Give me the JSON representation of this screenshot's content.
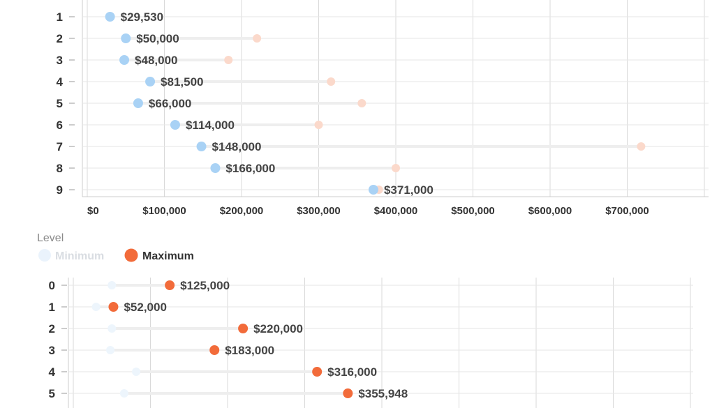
{
  "colors": {
    "minimum": "#a9d2f5",
    "maximum": "#f26b3a",
    "grid": "#d9d9d9",
    "connector": "#eeeeee"
  },
  "legend": {
    "title": "Level",
    "items": [
      "Minimum",
      "Maximum"
    ],
    "active": "Maximum"
  },
  "chart_data": [
    {
      "type": "scatter",
      "subtype": "dumbbell",
      "highlighted_series": "Minimum",
      "categories": [
        "1",
        "2",
        "3",
        "4",
        "5",
        "6",
        "7",
        "8",
        "9"
      ],
      "series": [
        {
          "name": "Minimum",
          "values": [
            29530,
            50000,
            48000,
            81500,
            66000,
            114000,
            148000,
            166000,
            371000
          ]
        },
        {
          "name": "Maximum",
          "values": [
            null,
            220000,
            183000,
            316000,
            355948,
            300000,
            718000,
            400000,
            378000
          ]
        }
      ],
      "data_labels": [
        "$29,530",
        "$50,000",
        "$48,000",
        "$81,500",
        "$66,000",
        "$114,000",
        "$148,000",
        "$166,000",
        "$371,000"
      ],
      "x_ticks": [
        "$0",
        "$100,000",
        "$200,000",
        "$300,000",
        "$400,000",
        "$500,000",
        "$600,000",
        "$700,000"
      ],
      "xlim": [
        0,
        800000
      ],
      "grid": true
    },
    {
      "type": "scatter",
      "subtype": "dumbbell",
      "highlighted_series": "Maximum",
      "categories": [
        "0",
        "1",
        "2",
        "3",
        "4",
        "5"
      ],
      "series": [
        {
          "name": "Minimum",
          "values": [
            50000,
            29530,
            50000,
            48000,
            81500,
            66000
          ]
        },
        {
          "name": "Maximum",
          "values": [
            125000,
            52000,
            220000,
            183000,
            316000,
            355948
          ]
        }
      ],
      "data_labels": [
        "$125,000",
        "$52,000",
        "$220,000",
        "$183,000",
        "$316,000",
        "$355,948"
      ],
      "xlim": [
        0,
        800000
      ],
      "grid": true
    }
  ]
}
